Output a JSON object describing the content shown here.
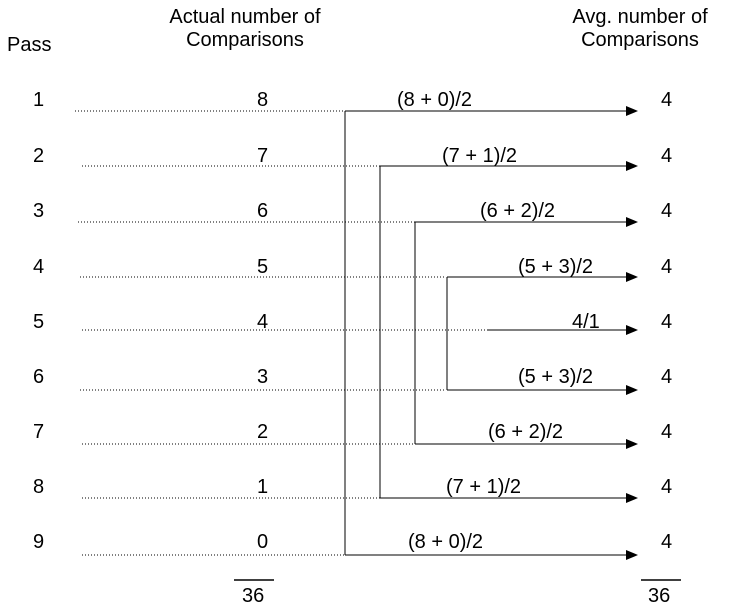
{
  "headers": {
    "pass": "Pass",
    "actual_line1": "Actual number of",
    "actual_line2": "Comparisons",
    "avg_line1": "Avg. number of",
    "avg_line2": "Comparisons"
  },
  "rows": [
    {
      "pass": "1",
      "actual": "8",
      "formula": "(8 + 0)/2",
      "avg": "4"
    },
    {
      "pass": "2",
      "actual": "7",
      "formula": "(7 + 1)/2",
      "avg": "4"
    },
    {
      "pass": "3",
      "actual": "6",
      "formula": "(6 + 2)/2",
      "avg": "4"
    },
    {
      "pass": "4",
      "actual": "5",
      "formula": "(5 + 3)/2",
      "avg": "4"
    },
    {
      "pass": "5",
      "actual": "4",
      "formula": "4/1",
      "avg": "4"
    },
    {
      "pass": "6",
      "actual": "3",
      "formula": "(5 + 3)/2",
      "avg": "4"
    },
    {
      "pass": "7",
      "actual": "2",
      "formula": "(6 + 2)/2",
      "avg": "4"
    },
    {
      "pass": "8",
      "actual": "1",
      "formula": "(7 + 1)/2",
      "avg": "4"
    },
    {
      "pass": "9",
      "actual": "0",
      "formula": "(8 + 0)/2",
      "avg": "4"
    }
  ],
  "totals": {
    "actual": "36",
    "avg": "36"
  },
  "colors": {
    "line": "#000000",
    "text": "#000000",
    "background": "#ffffff"
  }
}
